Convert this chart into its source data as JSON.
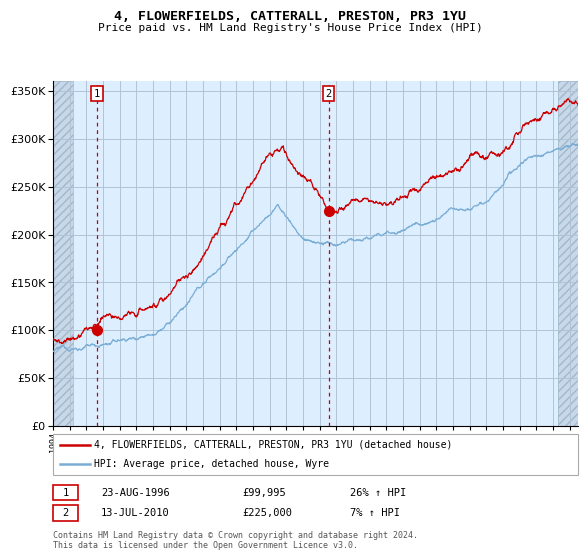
{
  "title": "4, FLOWERFIELDS, CATTERALL, PRESTON, PR3 1YU",
  "subtitle": "Price paid vs. HM Land Registry's House Price Index (HPI)",
  "sale1_date": "23-AUG-1996",
  "sale1_price": 99995,
  "sale1_label": "26% ↑ HPI",
  "sale2_date": "13-JUL-2010",
  "sale2_price": 225000,
  "sale2_label": "7% ↑ HPI",
  "legend_red": "4, FLOWERFIELDS, CATTERALL, PRESTON, PR3 1YU (detached house)",
  "legend_blue": "HPI: Average price, detached house, Wyre",
  "footer": "Contains HM Land Registry data © Crown copyright and database right 2024.\nThis data is licensed under the Open Government Licence v3.0.",
  "red_color": "#cc0000",
  "blue_color": "#7aadd4",
  "bg_color": "#ddeeff",
  "grid_color": "#b0c4d8",
  "ylim": [
    0,
    360000
  ],
  "yticks": [
    0,
    50000,
    100000,
    150000,
    200000,
    250000,
    300000,
    350000
  ],
  "sale1_year": 1996.64,
  "sale2_year": 2010.53,
  "xmin": 1994.0,
  "xmax": 2025.5
}
